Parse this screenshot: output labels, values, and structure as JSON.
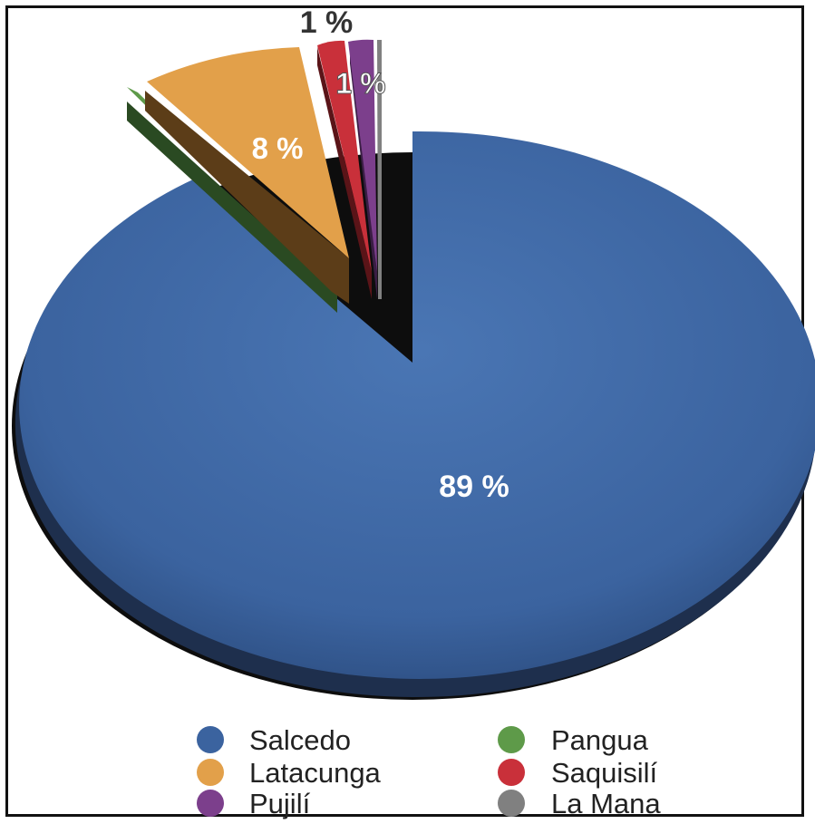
{
  "chart_data": {
    "type": "pie",
    "title": "",
    "slices": [
      {
        "label": "Salcedo",
        "value": 89,
        "display": "89 %",
        "color": "#3b639f"
      },
      {
        "label": "Pangua",
        "value": 1,
        "display": "",
        "color": "#5e9a49"
      },
      {
        "label": "Latacunga",
        "value": 8,
        "display": "8 %",
        "color": "#e2a04a"
      },
      {
        "label": "Saquisilí",
        "value": 1,
        "display": "1 %",
        "color": "#c9303a"
      },
      {
        "label": "Pujilí",
        "value": 1,
        "display": "1 %",
        "color": "#7c3f8c"
      },
      {
        "label": "La Mana",
        "value": 0,
        "display": "",
        "color": "#808080"
      }
    ],
    "legend": {
      "position": "bottom",
      "entries": [
        "Salcedo",
        "Pangua",
        "Latacunga",
        "Saquisilí",
        "Pujilí",
        "La Mana"
      ]
    }
  }
}
